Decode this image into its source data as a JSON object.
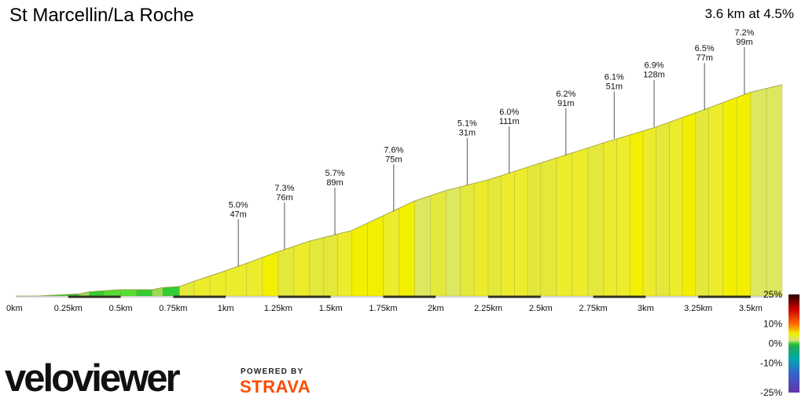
{
  "header": {
    "title": "St Marcellin/La Roche",
    "summary": "3.6 km at 4.5%"
  },
  "brand": {
    "logo_text": "veloviewer",
    "powered_by": "POWERED BY",
    "strava": "STRAVA"
  },
  "colors": {
    "background": "#ffffff",
    "climb_yellow": "#ecec2c",
    "flat_green": "#33cc33",
    "axis_dark": "#333322",
    "strava_orange": "#fc4c02"
  },
  "chart_data": {
    "type": "area",
    "title": "St Marcellin/La Roche",
    "xlabel": "",
    "ylabel": "",
    "x_unit": "km",
    "xlim": [
      0,
      3.65
    ],
    "x_ticks": [
      "0km",
      "0.25km",
      "0.5km",
      "0.75km",
      "1km",
      "1.25km",
      "1.5km",
      "1.75km",
      "2km",
      "2.25km",
      "2.5km",
      "2.75km",
      "3km",
      "3.25km",
      "3.5km"
    ],
    "x_tick_values": [
      0,
      0.25,
      0.5,
      0.75,
      1,
      1.25,
      1.5,
      1.75,
      2,
      2.25,
      2.5,
      2.75,
      3,
      3.25,
      3.5
    ],
    "ylim_relative_m": [
      0,
      165
    ],
    "profile": [
      {
        "x": 0.0,
        "y": 0,
        "grade": 0.2
      },
      {
        "x": 0.1,
        "y": 0,
        "grade": -1.0
      },
      {
        "x": 0.2,
        "y": 1,
        "grade": 1.5
      },
      {
        "x": 0.3,
        "y": 2,
        "grade": 0.8
      },
      {
        "x": 0.35,
        "y": 4,
        "grade": 3.5
      },
      {
        "x": 0.42,
        "y": 5,
        "grade": 1.2
      },
      {
        "x": 0.5,
        "y": 6,
        "grade": 0.5
      },
      {
        "x": 0.65,
        "y": 6,
        "grade": 0.3
      },
      {
        "x": 0.7,
        "y": 8,
        "grade": 2.5
      },
      {
        "x": 0.78,
        "y": 9,
        "grade": 1.0
      },
      {
        "x": 0.85,
        "y": 14,
        "grade": 6.5
      },
      {
        "x": 1.0,
        "y": 24,
        "grade": 6.8
      },
      {
        "x": 1.1,
        "y": 31,
        "grade": 7.0
      },
      {
        "x": 1.25,
        "y": 42,
        "grade": 7.3
      },
      {
        "x": 1.4,
        "y": 52,
        "grade": 6.5
      },
      {
        "x": 1.6,
        "y": 62,
        "grade": 5.7
      },
      {
        "x": 1.75,
        "y": 76,
        "grade": 7.6
      },
      {
        "x": 1.9,
        "y": 90,
        "grade": 7.0
      },
      {
        "x": 2.05,
        "y": 100,
        "grade": 5.1
      },
      {
        "x": 2.25,
        "y": 110,
        "grade": 5.5
      },
      {
        "x": 2.5,
        "y": 126,
        "grade": 6.2
      },
      {
        "x": 2.8,
        "y": 145,
        "grade": 6.1
      },
      {
        "x": 3.05,
        "y": 160,
        "grade": 6.9
      },
      {
        "x": 3.3,
        "y": 178,
        "grade": 6.5
      },
      {
        "x": 3.5,
        "y": 193,
        "grade": 7.2
      },
      {
        "x": 3.65,
        "y": 200,
        "grade": 4.0
      }
    ],
    "annotations": [
      {
        "x": 1.06,
        "y": 28,
        "grade": "5.0%",
        "length": "47m"
      },
      {
        "x": 1.28,
        "y": 44,
        "grade": "7.3%",
        "length": "76m"
      },
      {
        "x": 1.52,
        "y": 58,
        "grade": "5.7%",
        "length": "89m"
      },
      {
        "x": 1.8,
        "y": 80,
        "grade": "7.6%",
        "length": "75m"
      },
      {
        "x": 2.15,
        "y": 105,
        "grade": "5.1%",
        "length": "31m"
      },
      {
        "x": 2.35,
        "y": 116,
        "grade": "6.0%",
        "length": "111m"
      },
      {
        "x": 2.62,
        "y": 133,
        "grade": "6.2%",
        "length": "91m"
      },
      {
        "x": 2.85,
        "y": 149,
        "grade": "6.1%",
        "length": "51m"
      },
      {
        "x": 3.04,
        "y": 160,
        "grade": "6.9%",
        "length": "128m"
      },
      {
        "x": 3.28,
        "y": 176,
        "grade": "6.5%",
        "length": "77m"
      },
      {
        "x": 3.47,
        "y": 191,
        "grade": "7.2%",
        "length": "99m"
      }
    ],
    "gradient_legend": {
      "labels": [
        "25%",
        "10%",
        "0%",
        "-10%",
        "-25%"
      ],
      "values": [
        25,
        10,
        0,
        -10,
        -25
      ]
    }
  }
}
